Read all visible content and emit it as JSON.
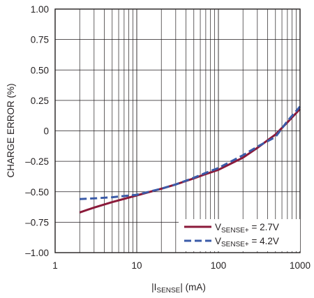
{
  "chart_data": {
    "type": "line",
    "x_scale": "log",
    "xlim": [
      1,
      1000
    ],
    "ylim": [
      -1.0,
      1.0
    ],
    "xlabel": {
      "pre": "|I",
      "sub": "SENSE",
      "post": "| (mA)"
    },
    "ylabel": "CHARGE ERROR (%)",
    "x_ticks": [
      {
        "value": 1,
        "label": "1"
      },
      {
        "value": 10,
        "label": "10"
      },
      {
        "value": 100,
        "label": "100"
      },
      {
        "value": 1000,
        "label": "1000"
      }
    ],
    "y_ticks": [
      {
        "value": 1.0,
        "label": "1.00"
      },
      {
        "value": 0.75,
        "label": "0.75"
      },
      {
        "value": 0.5,
        "label": "0.50"
      },
      {
        "value": 0.25,
        "label": "0.25"
      },
      {
        "value": 0,
        "label": "0"
      },
      {
        "value": -0.25,
        "label": "–0.25"
      },
      {
        "value": -0.5,
        "label": "–0.50"
      },
      {
        "value": -0.75,
        "label": "–0.75"
      },
      {
        "value": -1.0,
        "label": "–1.00"
      }
    ],
    "grid": true,
    "legend_position": "bottom-right",
    "series": [
      {
        "name": "V_SENSE+ = 2.7V",
        "name_parts": {
          "pre": "V",
          "sub": "SENSE+",
          "post": " = 2.7V"
        },
        "color": "#8b1a3a",
        "dash": "solid",
        "points": [
          [
            2,
            -0.67
          ],
          [
            3,
            -0.63
          ],
          [
            5,
            -0.585
          ],
          [
            10,
            -0.53
          ],
          [
            20,
            -0.475
          ],
          [
            30,
            -0.44
          ],
          [
            50,
            -0.39
          ],
          [
            70,
            -0.355
          ],
          [
            100,
            -0.32
          ],
          [
            200,
            -0.22
          ],
          [
            300,
            -0.14
          ],
          [
            500,
            -0.03
          ],
          [
            700,
            0.07
          ],
          [
            1000,
            0.18
          ]
        ]
      },
      {
        "name": "V_SENSE+ = 4.2V",
        "name_parts": {
          "pre": "V",
          "sub": "SENSE+",
          "post": " = 4.2V"
        },
        "color": "#3b5ba8",
        "dash": "dashed",
        "points": [
          [
            2,
            -0.56
          ],
          [
            3,
            -0.555
          ],
          [
            5,
            -0.545
          ],
          [
            10,
            -0.525
          ],
          [
            20,
            -0.475
          ],
          [
            30,
            -0.44
          ],
          [
            50,
            -0.385
          ],
          [
            70,
            -0.345
          ],
          [
            100,
            -0.305
          ],
          [
            200,
            -0.2
          ],
          [
            300,
            -0.13
          ],
          [
            500,
            -0.05
          ],
          [
            700,
            0.08
          ],
          [
            1000,
            0.2
          ]
        ]
      }
    ]
  }
}
